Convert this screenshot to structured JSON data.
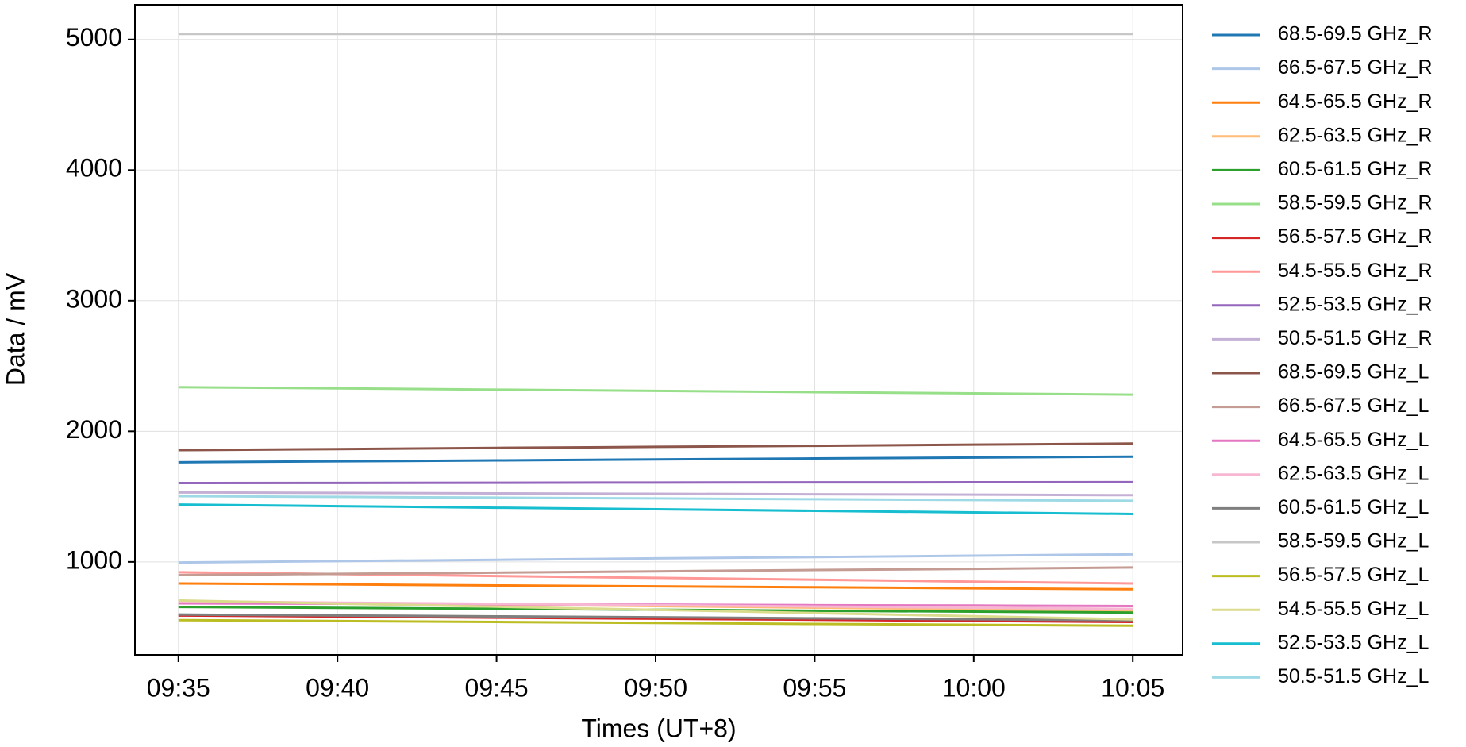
{
  "chart_data": {
    "type": "line",
    "x_label": "Times (UT+8)",
    "y_label": "Data / mV",
    "x": [
      "09:35",
      "09:40",
      "09:45",
      "09:50",
      "09:55",
      "10:00",
      "10:05"
    ],
    "xlim": [
      "09:33:38",
      "10:06:34"
    ],
    "xticks": [
      "09:35",
      "09:40",
      "09:45",
      "09:50",
      "09:55",
      "10:00",
      "10:05"
    ],
    "ylim": [
      288,
      5266
    ],
    "yticks": [
      1000,
      2000,
      3000,
      4000,
      5000
    ],
    "grid": true,
    "legend": "outside right",
    "series": [
      {
        "name": "68.5-69.5 GHz_R",
        "color": "#1f77b4",
        "values": [
          1763,
          1770,
          1777,
          1785,
          1792,
          1799,
          1806
        ]
      },
      {
        "name": "66.5-67.5 GHz_R",
        "color": "#aec7e8",
        "values": [
          995,
          1006,
          1016,
          1027,
          1037,
          1048,
          1058
        ]
      },
      {
        "name": "64.5-65.5 GHz_R",
        "color": "#ff7f0e",
        "values": [
          835,
          828,
          820,
          813,
          806,
          798,
          791
        ]
      },
      {
        "name": "62.5-63.5 GHz_R",
        "color": "#ffbb78",
        "values": [
          698,
          686,
          674,
          662,
          650,
          638,
          626
        ]
      },
      {
        "name": "60.5-61.5 GHz_R",
        "color": "#2ca02c",
        "values": [
          655,
          648,
          641,
          634,
          626,
          619,
          612
        ]
      },
      {
        "name": "58.5-59.5 GHz_R",
        "color": "#98df8a",
        "values": [
          2338,
          2329,
          2319,
          2310,
          2300,
          2291,
          2281
        ]
      },
      {
        "name": "56.5-57.5 GHz_R",
        "color": "#d62728",
        "values": [
          590,
          582,
          573,
          565,
          557,
          548,
          540
        ]
      },
      {
        "name": "54.5-55.5 GHz_R",
        "color": "#ff9896",
        "values": [
          921,
          907,
          892,
          878,
          864,
          849,
          835
        ]
      },
      {
        "name": "52.5-53.5 GHz_R",
        "color": "#9467bd",
        "values": [
          1604,
          1605,
          1606,
          1608,
          1609,
          1610,
          1611
        ]
      },
      {
        "name": "50.5-51.5 GHz_R",
        "color": "#c5b0d5",
        "values": [
          1532,
          1529,
          1525,
          1522,
          1518,
          1515,
          1511
        ]
      },
      {
        "name": "68.5-69.5 GHz_L",
        "color": "#8c564b",
        "values": [
          1856,
          1864,
          1873,
          1881,
          1889,
          1898,
          1906
        ]
      },
      {
        "name": "66.5-67.5 GHz_L",
        "color": "#c49c94",
        "values": [
          899,
          909,
          918,
          928,
          938,
          947,
          957
        ]
      },
      {
        "name": "64.5-65.5 GHz_L",
        "color": "#e377c2",
        "values": [
          683,
          680,
          676,
          673,
          669,
          666,
          662
        ]
      },
      {
        "name": "62.5-63.5 GHz_L",
        "color": "#f7b6d2",
        "values": [
          698,
          688,
          679,
          669,
          659,
          650,
          640
        ]
      },
      {
        "name": "60.5-61.5 GHz_L",
        "color": "#7f7f7f",
        "values": [
          597,
          590,
          583,
          576,
          568,
          561,
          554
        ]
      },
      {
        "name": "58.5-59.5 GHz_L",
        "color": "#c7c7c7",
        "values": [
          5043,
          5043,
          5043,
          5043,
          5043,
          5043,
          5043
        ]
      },
      {
        "name": "56.5-57.5 GHz_L",
        "color": "#bcbd22",
        "values": [
          554,
          547,
          540,
          533,
          525,
          518,
          511
        ]
      },
      {
        "name": "54.5-55.5 GHz_L",
        "color": "#dbdb8d",
        "values": [
          705,
          681,
          657,
          633,
          608,
          584,
          560
        ]
      },
      {
        "name": "52.5-53.5 GHz_L",
        "color": "#17becf",
        "values": [
          1439,
          1427,
          1415,
          1403,
          1391,
          1379,
          1367
        ]
      },
      {
        "name": "50.5-51.5 GHz_L",
        "color": "#9edae5",
        "values": [
          1504,
          1498,
          1492,
          1486,
          1480,
          1474,
          1468
        ]
      }
    ]
  }
}
